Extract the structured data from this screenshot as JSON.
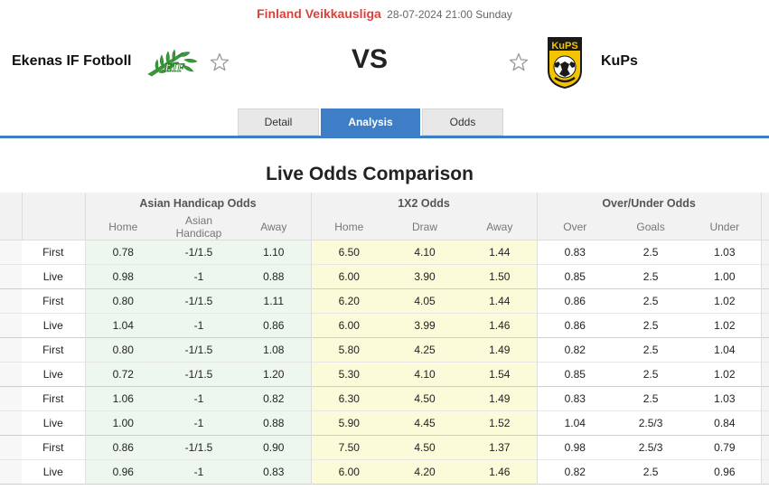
{
  "match": {
    "league": "Finland Veikkausliga",
    "datetime": "28-07-2024 21:00 Sunday",
    "home_team": "Ekenas IF Fotboll",
    "away_team": "KuPs",
    "vs": "VS",
    "away_logo_text": "KuPS"
  },
  "tabs": [
    {
      "label": "Detail",
      "active": false
    },
    {
      "label": "Analysis",
      "active": true
    },
    {
      "label": "Odds",
      "active": false
    }
  ],
  "section_title": "Live Odds Comparison",
  "table": {
    "groups": [
      "Asian Handicap Odds",
      "1X2 Odds",
      "Over/Under Odds"
    ],
    "subheaders": [
      "Home",
      "Asian Handicap",
      "Away",
      "Home",
      "Draw",
      "Away",
      "Over",
      "Goals",
      "Under"
    ],
    "rows": [
      {
        "type": "First",
        "values": [
          "0.78",
          "-1/1.5",
          "1.10",
          "6.50",
          "4.10",
          "1.44",
          "0.83",
          "2.5",
          "1.03"
        ]
      },
      {
        "type": "Live",
        "values": [
          "0.98",
          "-1",
          "0.88",
          "6.00",
          "3.90",
          "1.50",
          "0.85",
          "2.5",
          "1.00"
        ]
      },
      {
        "type": "First",
        "values": [
          "0.80",
          "-1/1.5",
          "1.11",
          "6.20",
          "4.05",
          "1.44",
          "0.86",
          "2.5",
          "1.02"
        ]
      },
      {
        "type": "Live",
        "values": [
          "1.04",
          "-1",
          "0.86",
          "6.00",
          "3.99",
          "1.46",
          "0.86",
          "2.5",
          "1.02"
        ]
      },
      {
        "type": "First",
        "values": [
          "0.80",
          "-1/1.5",
          "1.08",
          "5.80",
          "4.25",
          "1.49",
          "0.82",
          "2.5",
          "1.04"
        ]
      },
      {
        "type": "Live",
        "values": [
          "0.72",
          "-1/1.5",
          "1.20",
          "5.30",
          "4.10",
          "1.54",
          "0.85",
          "2.5",
          "1.02"
        ]
      },
      {
        "type": "First",
        "values": [
          "1.06",
          "-1",
          "0.82",
          "6.30",
          "4.50",
          "1.49",
          "0.83",
          "2.5",
          "1.03"
        ]
      },
      {
        "type": "Live",
        "values": [
          "1.00",
          "-1",
          "0.88",
          "5.90",
          "4.45",
          "1.52",
          "1.04",
          "2.5/3",
          "0.84"
        ]
      },
      {
        "type": "First",
        "values": [
          "0.86",
          "-1/1.5",
          "0.90",
          "7.50",
          "4.50",
          "1.37",
          "0.98",
          "2.5/3",
          "0.79"
        ]
      },
      {
        "type": "Live",
        "values": [
          "0.96",
          "-1",
          "0.83",
          "6.00",
          "4.20",
          "1.46",
          "0.82",
          "2.5",
          "0.96"
        ]
      }
    ]
  },
  "colors": {
    "league": "#e0403a",
    "tab_active": "#3d7ec6",
    "asian_handicap_bg": "#eef7ee",
    "x12_bg": "#fbfbd9",
    "kups_yellow": "#f5c400",
    "ekenas_green": "#3a9a3a"
  },
  "icons": [
    "star-outline-icon",
    "ekenas-logo",
    "kups-logo"
  ]
}
